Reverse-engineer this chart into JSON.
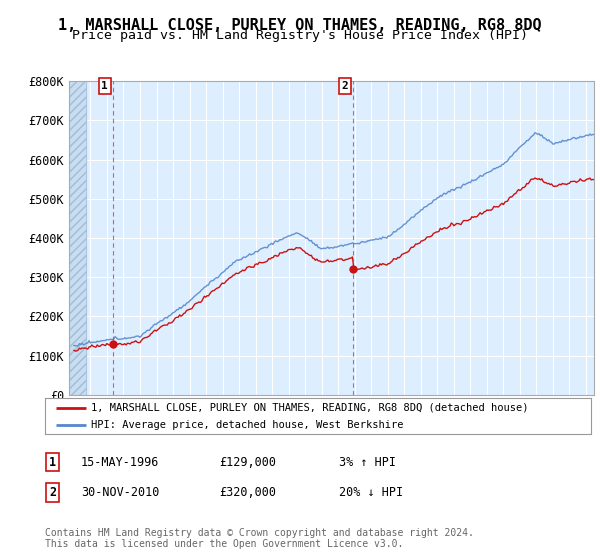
{
  "title": "1, MARSHALL CLOSE, PURLEY ON THAMES, READING, RG8 8DQ",
  "subtitle": "Price paid vs. HM Land Registry's House Price Index (HPI)",
  "ylim": [
    0,
    800000
  ],
  "yticks": [
    0,
    100000,
    200000,
    300000,
    400000,
    500000,
    600000,
    700000,
    800000
  ],
  "ytick_labels": [
    "£0",
    "£100K",
    "£200K",
    "£300K",
    "£400K",
    "£500K",
    "£600K",
    "£700K",
    "£800K"
  ],
  "xlim_start": 1993.7,
  "xlim_end": 2025.5,
  "plot_bg_color": "#ddeeff",
  "fig_bg_color": "#ffffff",
  "hatch_end": 1994.75,
  "grid_color": "#ffffff",
  "red_color": "#cc1111",
  "blue_color": "#5588cc",
  "vline_color": "#dd4444",
  "sale1_year": 1996.37,
  "sale1_price": 129000,
  "sale2_year": 2010.92,
  "sale2_price": 320000,
  "legend_line1": "1, MARSHALL CLOSE, PURLEY ON THAMES, READING, RG8 8DQ (detached house)",
  "legend_line2": "HPI: Average price, detached house, West Berkshire",
  "annot1_label": "1",
  "annot1_date": "15-MAY-1996",
  "annot1_price": "£129,000",
  "annot1_hpi": "3% ↑ HPI",
  "annot2_label": "2",
  "annot2_date": "30-NOV-2010",
  "annot2_price": "£320,000",
  "annot2_hpi": "20% ↓ HPI",
  "footer": "Contains HM Land Registry data © Crown copyright and database right 2024.\nThis data is licensed under the Open Government Licence v3.0.",
  "title_fontsize": 11,
  "subtitle_fontsize": 9.5
}
